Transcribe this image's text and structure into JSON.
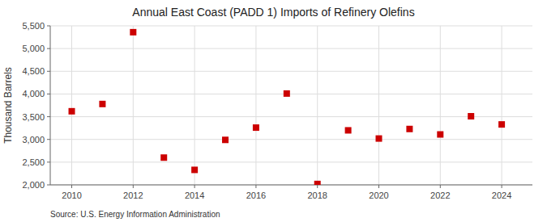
{
  "chart_data": {
    "type": "scatter",
    "title": "Annual East Coast (PADD 1) Imports of Refinery Olefins",
    "y_label": "Thousand Barrels",
    "annotations": [
      "Source: U.S. Energy Information Administration"
    ],
    "x": [
      2010,
      2011,
      2012,
      2013,
      2014,
      2015,
      2016,
      2017,
      2018,
      2019,
      2020,
      2021,
      2022,
      2023,
      2024
    ],
    "values": [
      3620,
      3780,
      5360,
      2600,
      2330,
      2990,
      3260,
      4010,
      2020,
      3200,
      3020,
      3230,
      3110,
      3510,
      3330
    ],
    "color": "#cc0000",
    "marker": "square",
    "xlim": [
      2009.3,
      2025.0
    ],
    "xticks": [
      2010,
      2012,
      2014,
      2016,
      2018,
      2020,
      2022,
      2024
    ],
    "ylim": [
      2000,
      5500
    ],
    "yticks": [
      {
        "value": 2000,
        "label": "2,000"
      },
      {
        "value": 2500,
        "label": "2,500"
      },
      {
        "value": 3000,
        "label": "3,000"
      },
      {
        "value": 3500,
        "label": "3,500"
      },
      {
        "value": 4000,
        "label": "4,000"
      },
      {
        "value": 4500,
        "label": "4,500"
      },
      {
        "value": 5000,
        "label": "5,000"
      },
      {
        "value": 5500,
        "label": "5,500"
      }
    ],
    "grid": true
  }
}
